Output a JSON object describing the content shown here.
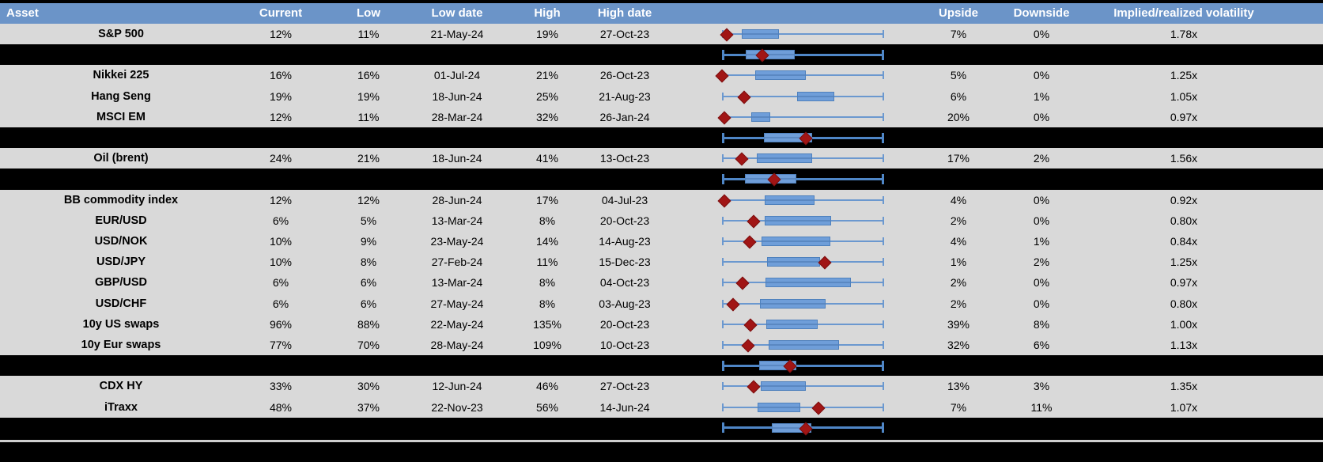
{
  "header": {
    "columns": [
      {
        "id": "asset",
        "label": "Asset"
      },
      {
        "id": "current",
        "label": "Current"
      },
      {
        "id": "low",
        "label": "Low"
      },
      {
        "id": "low_date",
        "label": "Low date"
      },
      {
        "id": "high",
        "label": "High"
      },
      {
        "id": "high_date",
        "label": "High date"
      },
      {
        "id": "upside",
        "label": "Upside"
      },
      {
        "id": "downside",
        "label": "Downside"
      },
      {
        "id": "implied_realized",
        "label": "Implied/realized volatility"
      }
    ]
  },
  "colors": {
    "header_blue": "#6b94c8",
    "row_gray": "#d9d9d9",
    "band_black": "#000000",
    "box_blue": "#6f9ed9",
    "whisker_blue": "#6b98cf",
    "diamond_red": "#a11515"
  },
  "chart_data": {
    "type": "table",
    "description": "Implied volatility table; each row has a box-whisker plot of the 1y low-high vol range (whisker spans full range, box = inner range, red diamond = current level as fraction of range 0-1). Summary rows are black bands with aggregate box plots.",
    "columns": [
      "Asset",
      "Current",
      "Low",
      "Low date",
      "High",
      "High date",
      "Upside",
      "Downside",
      "Implied/realized volatility"
    ],
    "rows": [
      {
        "kind": "data",
        "asset": "S&P 500",
        "current": "12%",
        "low": "11%",
        "low_date": "21-May-24",
        "high": "19%",
        "high_date": "27-Oct-23",
        "upside": "7%",
        "downside": "0%",
        "implied_realized": "1.78x",
        "box": {
          "diamond": 0.03,
          "box_low": 0.12,
          "box_high": 0.34
        }
      },
      {
        "kind": "summary",
        "box": {
          "diamond": 0.25,
          "box_low": 0.145,
          "box_high": 0.44
        }
      },
      {
        "kind": "data",
        "asset": "Nikkei 225",
        "current": "16%",
        "low": "16%",
        "low_date": "01-Jul-24",
        "high": "21%",
        "high_date": "26-Oct-23",
        "upside": "5%",
        "downside": "0%",
        "implied_realized": "1.25x",
        "box": {
          "diamond": 0.0,
          "box_low": 0.205,
          "box_high": 0.505
        }
      },
      {
        "kind": "data",
        "asset": "Hang Seng",
        "current": "19%",
        "low": "19%",
        "low_date": "18-Jun-24",
        "high": "25%",
        "high_date": "21-Aug-23",
        "upside": "6%",
        "downside": "1%",
        "implied_realized": "1.05x",
        "box": {
          "diamond": 0.135,
          "box_low": 0.465,
          "box_high": 0.685
        }
      },
      {
        "kind": "data",
        "asset": "MSCI EM",
        "current": "12%",
        "low": "11%",
        "low_date": "28-Mar-24",
        "high": "32%",
        "high_date": "26-Jan-24",
        "upside": "20%",
        "downside": "0%",
        "implied_realized": "0.97x",
        "box": {
          "diamond": 0.015,
          "box_low": 0.18,
          "box_high": 0.29
        }
      },
      {
        "kind": "summary",
        "box": {
          "diamond": 0.515,
          "box_low": 0.26,
          "box_high": 0.545
        }
      },
      {
        "kind": "data",
        "asset": "Oil (brent)",
        "current": "24%",
        "low": "21%",
        "low_date": "18-Jun-24",
        "high": "41%",
        "high_date": "13-Oct-23",
        "upside": "17%",
        "downside": "2%",
        "implied_realized": "1.56x",
        "box": {
          "diamond": 0.12,
          "box_low": 0.215,
          "box_high": 0.545
        }
      },
      {
        "kind": "summary",
        "box": {
          "diamond": 0.32,
          "box_low": 0.14,
          "box_high": 0.45
        }
      },
      {
        "kind": "data",
        "asset": "BB commodity index",
        "current": "12%",
        "low": "12%",
        "low_date": "28-Jun-24",
        "high": "17%",
        "high_date": "04-Jul-23",
        "upside": "4%",
        "downside": "0%",
        "implied_realized": "0.92x",
        "box": {
          "diamond": 0.015,
          "box_low": 0.265,
          "box_high": 0.56
        }
      },
      {
        "kind": "data",
        "asset": "EUR/USD",
        "current": "6%",
        "low": "5%",
        "low_date": "13-Mar-24",
        "high": "8%",
        "high_date": "20-Oct-23",
        "upside": "2%",
        "downside": "0%",
        "implied_realized": "0.80x",
        "box": {
          "diamond": 0.195,
          "box_low": 0.265,
          "box_high": 0.665
        }
      },
      {
        "kind": "data",
        "asset": "USD/NOK",
        "current": "10%",
        "low": "9%",
        "low_date": "23-May-24",
        "high": "14%",
        "high_date": "14-Aug-23",
        "upside": "4%",
        "downside": "1%",
        "implied_realized": "0.84x",
        "box": {
          "diamond": 0.17,
          "box_low": 0.245,
          "box_high": 0.66
        }
      },
      {
        "kind": "data",
        "asset": "USD/JPY",
        "current": "10%",
        "low": "8%",
        "low_date": "27-Feb-24",
        "high": "11%",
        "high_date": "15-Dec-23",
        "upside": "1%",
        "downside": "2%",
        "implied_realized": "1.25x",
        "box": {
          "diamond": 0.635,
          "box_low": 0.28,
          "box_high": 0.595
        }
      },
      {
        "kind": "data",
        "asset": "GBP/USD",
        "current": "6%",
        "low": "6%",
        "low_date": "13-Mar-24",
        "high": "8%",
        "high_date": "04-Oct-23",
        "upside": "2%",
        "downside": "0%",
        "implied_realized": "0.97x",
        "box": {
          "diamond": 0.125,
          "box_low": 0.27,
          "box_high": 0.785
        }
      },
      {
        "kind": "data",
        "asset": "USD/CHF",
        "current": "6%",
        "low": "6%",
        "low_date": "27-May-24",
        "high": "8%",
        "high_date": "03-Aug-23",
        "upside": "2%",
        "downside": "0%",
        "implied_realized": "0.80x",
        "box": {
          "diamond": 0.07,
          "box_low": 0.235,
          "box_high": 0.63
        }
      },
      {
        "kind": "data",
        "asset": "10y US swaps",
        "current": "96%",
        "low": "88%",
        "low_date": "22-May-24",
        "high": "135%",
        "high_date": "20-Oct-23",
        "upside": "39%",
        "downside": "8%",
        "implied_realized": "1.00x",
        "box": {
          "diamond": 0.175,
          "box_low": 0.275,
          "box_high": 0.58
        }
      },
      {
        "kind": "data",
        "asset": "10y Eur swaps",
        "current": "77%",
        "low": "70%",
        "low_date": "28-May-24",
        "high": "109%",
        "high_date": "10-Oct-23",
        "upside": "32%",
        "downside": "6%",
        "implied_realized": "1.13x",
        "box": {
          "diamond": 0.16,
          "box_low": 0.29,
          "box_high": 0.71
        }
      },
      {
        "kind": "summary",
        "box": {
          "diamond": 0.42,
          "box_low": 0.23,
          "box_high": 0.45
        }
      },
      {
        "kind": "data",
        "asset": "CDX HY",
        "current": "33%",
        "low": "30%",
        "low_date": "12-Jun-24",
        "high": "46%",
        "high_date": "27-Oct-23",
        "upside": "13%",
        "downside": "3%",
        "implied_realized": "1.35x",
        "box": {
          "diamond": 0.195,
          "box_low": 0.24,
          "box_high": 0.505
        }
      },
      {
        "kind": "data",
        "asset": "iTraxx",
        "current": "48%",
        "low": "37%",
        "low_date": "22-Nov-23",
        "high": "56%",
        "high_date": "14-Jun-24",
        "upside": "7%",
        "downside": "11%",
        "implied_realized": "1.07x",
        "box": {
          "diamond": 0.595,
          "box_low": 0.22,
          "box_high": 0.475
        }
      },
      {
        "kind": "summary",
        "box": {
          "diamond": 0.515,
          "box_low": 0.305,
          "box_high": 0.54
        }
      }
    ]
  }
}
